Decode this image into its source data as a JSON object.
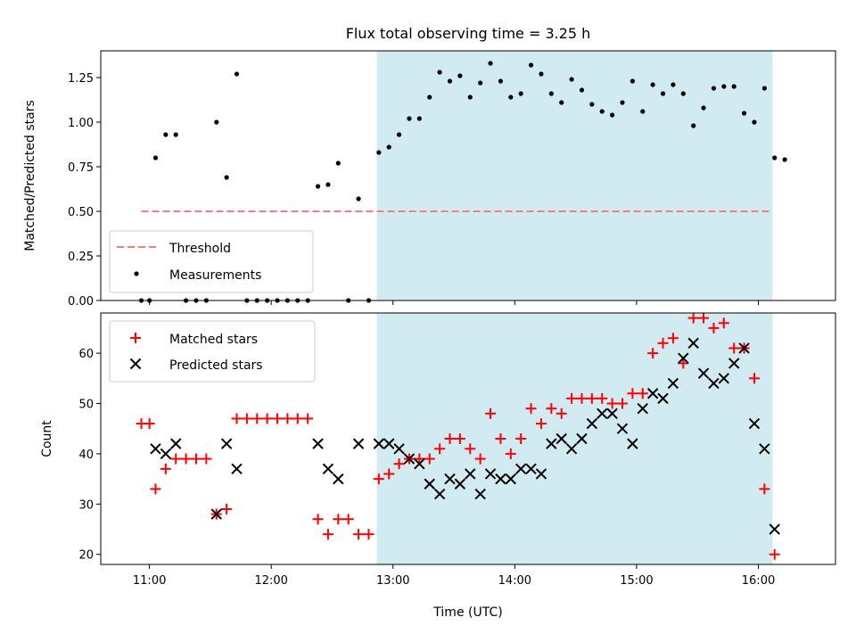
{
  "chart_data": {
    "title": "Flux total observing time = 3.25 h",
    "xlabel": "Time (UTC)",
    "x_ticks": [
      "11:00",
      "12:00",
      "13:00",
      "14:00",
      "15:00",
      "16:00"
    ],
    "x_range": [
      "10:36",
      "16:38"
    ],
    "observing_window": [
      "12:52",
      "16:07"
    ],
    "colors": {
      "window": "#add8e6",
      "threshold": "#f08080",
      "measurement": "#000000",
      "matched": "#ff0000",
      "predicted": "#000000"
    },
    "panels": [
      {
        "type": "scatter",
        "ylabel": "Matched/Predicted stars",
        "ylim": [
          0,
          1.4
        ],
        "y_ticks": [
          "0.00",
          "0.25",
          "0.50",
          "0.75",
          "1.00",
          "1.25"
        ],
        "legend_position": "lower-left",
        "threshold": {
          "name": "Threshold",
          "value": 0.5,
          "x_range": [
            "10:56",
            "16:07"
          ]
        },
        "series": [
          {
            "name": "Measurements",
            "marker": "dot",
            "points": [
              [
                "10:56",
                0
              ],
              [
                "11:00",
                0
              ],
              [
                "11:03",
                0.8
              ],
              [
                "11:08",
                0.93
              ],
              [
                "11:13",
                0.93
              ],
              [
                "11:18",
                0
              ],
              [
                "11:23",
                0
              ],
              [
                "11:28",
                0
              ],
              [
                "11:33",
                1.0
              ],
              [
                "11:38",
                0.69
              ],
              [
                "11:43",
                1.27
              ],
              [
                "11:48",
                0
              ],
              [
                "11:53",
                0
              ],
              [
                "11:58",
                0
              ],
              [
                "12:03",
                0
              ],
              [
                "12:08",
                0
              ],
              [
                "12:13",
                0
              ],
              [
                "12:18",
                0
              ],
              [
                "12:23",
                0.64
              ],
              [
                "12:28",
                0.65
              ],
              [
                "12:33",
                0.77
              ],
              [
                "12:38",
                0
              ],
              [
                "12:43",
                0.57
              ],
              [
                "12:48",
                0
              ],
              [
                "12:53",
                0.83
              ],
              [
                "12:58",
                0.86
              ],
              [
                "13:03",
                0.93
              ],
              [
                "13:08",
                1.02
              ],
              [
                "13:13",
                1.02
              ],
              [
                "13:18",
                1.14
              ],
              [
                "13:23",
                1.28
              ],
              [
                "13:28",
                1.23
              ],
              [
                "13:33",
                1.26
              ],
              [
                "13:38",
                1.14
              ],
              [
                "13:43",
                1.22
              ],
              [
                "13:48",
                1.33
              ],
              [
                "13:53",
                1.23
              ],
              [
                "13:58",
                1.14
              ],
              [
                "14:03",
                1.16
              ],
              [
                "14:08",
                1.32
              ],
              [
                "14:13",
                1.27
              ],
              [
                "14:18",
                1.16
              ],
              [
                "14:23",
                1.11
              ],
              [
                "14:28",
                1.24
              ],
              [
                "14:33",
                1.18
              ],
              [
                "14:38",
                1.1
              ],
              [
                "14:43",
                1.06
              ],
              [
                "14:48",
                1.04
              ],
              [
                "14:53",
                1.11
              ],
              [
                "14:58",
                1.23
              ],
              [
                "15:03",
                1.06
              ],
              [
                "15:08",
                1.21
              ],
              [
                "15:13",
                1.16
              ],
              [
                "15:18",
                1.21
              ],
              [
                "15:23",
                1.16
              ],
              [
                "15:28",
                0.98
              ],
              [
                "15:33",
                1.08
              ],
              [
                "15:38",
                1.19
              ],
              [
                "15:43",
                1.2
              ],
              [
                "15:48",
                1.2
              ],
              [
                "15:53",
                1.05
              ],
              [
                "15:58",
                1.0
              ],
              [
                "16:03",
                1.19
              ],
              [
                "16:08",
                0.8
              ],
              [
                "16:13",
                0.79
              ]
            ]
          }
        ]
      },
      {
        "type": "scatter",
        "ylabel": "Count",
        "ylim": [
          18,
          68
        ],
        "y_ticks": [
          "20",
          "30",
          "40",
          "50",
          "60"
        ],
        "legend_position": "upper-left",
        "series": [
          {
            "name": "Matched stars",
            "marker": "plus",
            "points": [
              [
                "10:56",
                46
              ],
              [
                "11:00",
                46
              ],
              [
                "11:03",
                33
              ],
              [
                "11:08",
                37
              ],
              [
                "11:13",
                39
              ],
              [
                "11:18",
                39
              ],
              [
                "11:23",
                39
              ],
              [
                "11:28",
                39
              ],
              [
                "11:33",
                28
              ],
              [
                "11:38",
                29
              ],
              [
                "11:43",
                47
              ],
              [
                "11:48",
                47
              ],
              [
                "11:53",
                47
              ],
              [
                "11:58",
                47
              ],
              [
                "12:03",
                47
              ],
              [
                "12:08",
                47
              ],
              [
                "12:13",
                47
              ],
              [
                "12:18",
                47
              ],
              [
                "12:23",
                27
              ],
              [
                "12:28",
                24
              ],
              [
                "12:33",
                27
              ],
              [
                "12:38",
                27
              ],
              [
                "12:43",
                24
              ],
              [
                "12:48",
                24
              ],
              [
                "12:53",
                35
              ],
              [
                "12:58",
                36
              ],
              [
                "13:03",
                38
              ],
              [
                "13:08",
                39
              ],
              [
                "13:13",
                39
              ],
              [
                "13:18",
                39
              ],
              [
                "13:23",
                41
              ],
              [
                "13:28",
                43
              ],
              [
                "13:33",
                43
              ],
              [
                "13:38",
                41
              ],
              [
                "13:43",
                39
              ],
              [
                "13:48",
                48
              ],
              [
                "13:53",
                43
              ],
              [
                "13:58",
                40
              ],
              [
                "14:03",
                43
              ],
              [
                "14:08",
                49
              ],
              [
                "14:13",
                46
              ],
              [
                "14:18",
                49
              ],
              [
                "14:23",
                48
              ],
              [
                "14:28",
                51
              ],
              [
                "14:33",
                51
              ],
              [
                "14:38",
                51
              ],
              [
                "14:43",
                51
              ],
              [
                "14:48",
                50
              ],
              [
                "14:53",
                50
              ],
              [
                "14:58",
                52
              ],
              [
                "15:03",
                52
              ],
              [
                "15:08",
                60
              ],
              [
                "15:13",
                62
              ],
              [
                "15:18",
                63
              ],
              [
                "15:23",
                58
              ],
              [
                "15:28",
                67
              ],
              [
                "15:33",
                67
              ],
              [
                "15:38",
                65
              ],
              [
                "15:43",
                66
              ],
              [
                "15:48",
                61
              ],
              [
                "15:53",
                61
              ],
              [
                "15:58",
                55
              ],
              [
                "16:03",
                33
              ],
              [
                "16:08",
                20
              ]
            ]
          },
          {
            "name": "Predicted stars",
            "marker": "cross",
            "points": [
              [
                "11:03",
                41
              ],
              [
                "11:08",
                40
              ],
              [
                "11:13",
                42
              ],
              [
                "11:33",
                28
              ],
              [
                "11:38",
                42
              ],
              [
                "11:43",
                37
              ],
              [
                "12:23",
                42
              ],
              [
                "12:28",
                37
              ],
              [
                "12:33",
                35
              ],
              [
                "12:43",
                42
              ],
              [
                "12:53",
                42
              ],
              [
                "12:58",
                42
              ],
              [
                "13:03",
                41
              ],
              [
                "13:08",
                39
              ],
              [
                "13:13",
                38
              ],
              [
                "13:18",
                34
              ],
              [
                "13:23",
                32
              ],
              [
                "13:28",
                35
              ],
              [
                "13:33",
                34
              ],
              [
                "13:38",
                36
              ],
              [
                "13:43",
                32
              ],
              [
                "13:48",
                36
              ],
              [
                "13:53",
                35
              ],
              [
                "13:58",
                35
              ],
              [
                "14:03",
                37
              ],
              [
                "14:08",
                37
              ],
              [
                "14:13",
                36
              ],
              [
                "14:18",
                42
              ],
              [
                "14:23",
                43
              ],
              [
                "14:28",
                41
              ],
              [
                "14:33",
                43
              ],
              [
                "14:38",
                46
              ],
              [
                "14:43",
                48
              ],
              [
                "14:48",
                48
              ],
              [
                "14:53",
                45
              ],
              [
                "14:58",
                42
              ],
              [
                "15:03",
                49
              ],
              [
                "15:08",
                52
              ],
              [
                "15:13",
                51
              ],
              [
                "15:18",
                54
              ],
              [
                "15:23",
                59
              ],
              [
                "15:28",
                62
              ],
              [
                "15:33",
                56
              ],
              [
                "15:38",
                54
              ],
              [
                "15:43",
                55
              ],
              [
                "15:48",
                58
              ],
              [
                "15:53",
                61
              ],
              [
                "15:58",
                46
              ],
              [
                "16:03",
                41
              ],
              [
                "16:08",
                25
              ]
            ]
          }
        ]
      }
    ]
  }
}
